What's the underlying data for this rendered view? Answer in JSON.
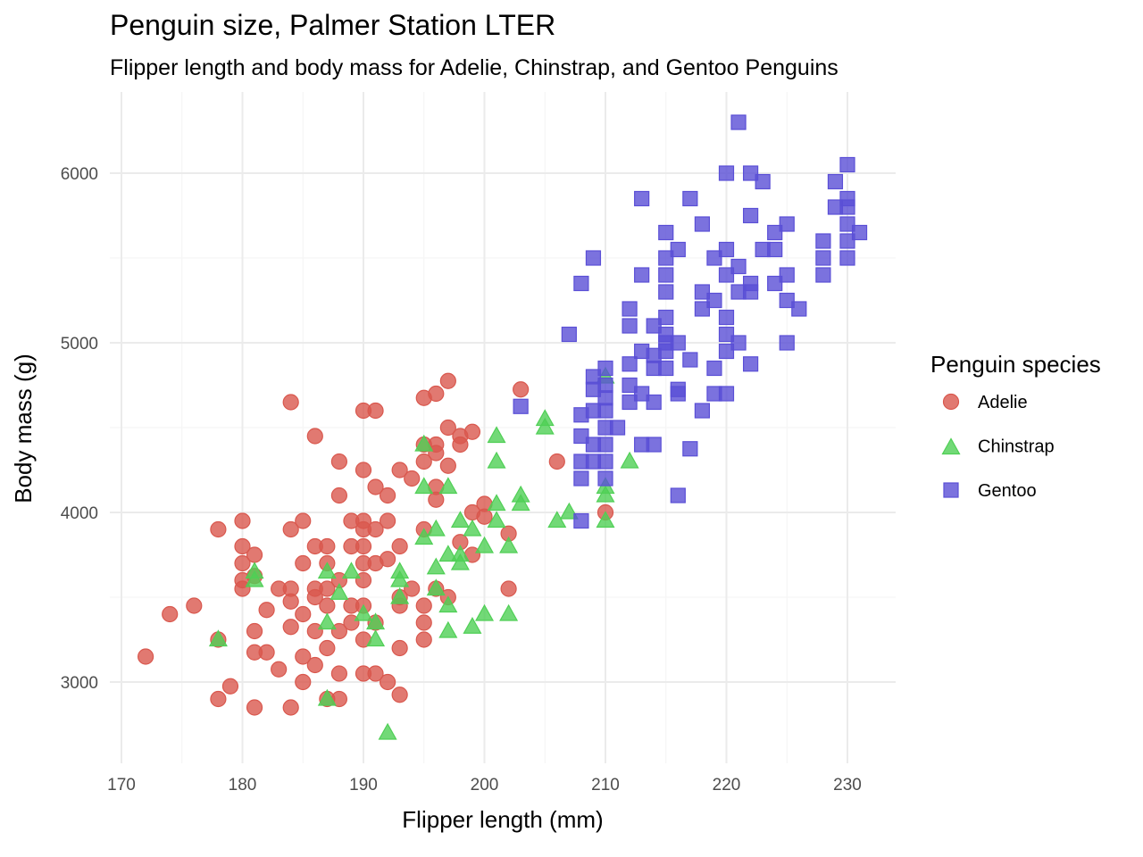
{
  "chart_data": {
    "type": "scatter",
    "title": "Penguin size, Palmer Station LTER",
    "subtitle": "Flipper length and body mass for Adelie, Chinstrap, and Gentoo Penguins",
    "xlabel": "Flipper length (mm)",
    "ylabel": "Body mass (g)",
    "xlim": [
      170,
      233
    ],
    "ylim": [
      2550,
      6450
    ],
    "xticks": [
      "170",
      "180",
      "190",
      "200",
      "210",
      "220",
      "230"
    ],
    "yticks": [
      "3000",
      "4000",
      "5000",
      "6000"
    ],
    "grid": true,
    "legend": {
      "title": "Penguin species",
      "placement": "right"
    },
    "series": [
      {
        "name": "Adelie",
        "color": "#d9574d",
        "shape": "circle",
        "points": [
          [
            172,
            3150
          ],
          [
            174,
            3400
          ],
          [
            176,
            3450
          ],
          [
            178,
            3900
          ],
          [
            178,
            3250
          ],
          [
            178,
            2900
          ],
          [
            179,
            2975
          ],
          [
            180,
            3950
          ],
          [
            180,
            3800
          ],
          [
            180,
            3700
          ],
          [
            180,
            3600
          ],
          [
            180,
            3550
          ],
          [
            181,
            3750
          ],
          [
            181,
            3625
          ],
          [
            181,
            3300
          ],
          [
            181,
            3175
          ],
          [
            181,
            2850
          ],
          [
            182,
            3425
          ],
          [
            182,
            3175
          ],
          [
            183,
            3550
          ],
          [
            183,
            3075
          ],
          [
            184,
            4650
          ],
          [
            184,
            3900
          ],
          [
            184,
            3550
          ],
          [
            184,
            3475
          ],
          [
            184,
            3325
          ],
          [
            184,
            2850
          ],
          [
            185,
            3950
          ],
          [
            185,
            3700
          ],
          [
            185,
            3400
          ],
          [
            185,
            3150
          ],
          [
            185,
            3000
          ],
          [
            186,
            4450
          ],
          [
            186,
            3800
          ],
          [
            186,
            3550
          ],
          [
            186,
            3500
          ],
          [
            186,
            3300
          ],
          [
            186,
            3100
          ],
          [
            187,
            3800
          ],
          [
            187,
            3700
          ],
          [
            187,
            3550
          ],
          [
            187,
            3450
          ],
          [
            187,
            3200
          ],
          [
            187,
            2900
          ],
          [
            188,
            4300
          ],
          [
            188,
            4100
          ],
          [
            188,
            3600
          ],
          [
            188,
            3300
          ],
          [
            188,
            3050
          ],
          [
            188,
            2900
          ],
          [
            189,
            3950
          ],
          [
            189,
            3800
          ],
          [
            189,
            3450
          ],
          [
            189,
            3350
          ],
          [
            190,
            4600
          ],
          [
            190,
            4250
          ],
          [
            190,
            3950
          ],
          [
            190,
            3900
          ],
          [
            190,
            3800
          ],
          [
            190,
            3700
          ],
          [
            190,
            3600
          ],
          [
            190,
            3450
          ],
          [
            190,
            3250
          ],
          [
            190,
            3050
          ],
          [
            191,
            4600
          ],
          [
            191,
            4150
          ],
          [
            191,
            3900
          ],
          [
            191,
            3700
          ],
          [
            191,
            3350
          ],
          [
            191,
            3050
          ],
          [
            192,
            4100
          ],
          [
            192,
            3950
          ],
          [
            192,
            3725
          ],
          [
            192,
            3000
          ],
          [
            193,
            4250
          ],
          [
            193,
            3800
          ],
          [
            193,
            3500
          ],
          [
            193,
            3450
          ],
          [
            193,
            3200
          ],
          [
            193,
            2925
          ],
          [
            194,
            4200
          ],
          [
            194,
            3550
          ],
          [
            195,
            4675
          ],
          [
            195,
            4400
          ],
          [
            195,
            4300
          ],
          [
            195,
            3900
          ],
          [
            195,
            3450
          ],
          [
            195,
            3350
          ],
          [
            195,
            3250
          ],
          [
            196,
            4700
          ],
          [
            196,
            4400
          ],
          [
            196,
            4350
          ],
          [
            196,
            4150
          ],
          [
            196,
            4075
          ],
          [
            196,
            3550
          ],
          [
            197,
            4775
          ],
          [
            197,
            4500
          ],
          [
            197,
            4275
          ],
          [
            197,
            3500
          ],
          [
            198,
            4450
          ],
          [
            198,
            4400
          ],
          [
            198,
            3825
          ],
          [
            199,
            4475
          ],
          [
            199,
            4000
          ],
          [
            199,
            3750
          ],
          [
            200,
            4050
          ],
          [
            200,
            3975
          ],
          [
            202,
            3875
          ],
          [
            202,
            3550
          ],
          [
            203,
            4725
          ],
          [
            206,
            4300
          ],
          [
            210,
            4000
          ]
        ]
      },
      {
        "name": "Chinstrap",
        "color": "#4fcf55",
        "shape": "triangle",
        "points": [
          [
            178,
            3250
          ],
          [
            181,
            3650
          ],
          [
            181,
            3600
          ],
          [
            187,
            3650
          ],
          [
            187,
            3350
          ],
          [
            187,
            2900
          ],
          [
            188,
            3525
          ],
          [
            189,
            3650
          ],
          [
            190,
            3400
          ],
          [
            191,
            3350
          ],
          [
            191,
            3250
          ],
          [
            192,
            2700
          ],
          [
            193,
            3650
          ],
          [
            193,
            3600
          ],
          [
            193,
            3500
          ],
          [
            195,
            4400
          ],
          [
            195,
            4150
          ],
          [
            195,
            3850
          ],
          [
            196,
            3900
          ],
          [
            196,
            3675
          ],
          [
            196,
            3550
          ],
          [
            197,
            4150
          ],
          [
            197,
            3750
          ],
          [
            197,
            3450
          ],
          [
            197,
            3300
          ],
          [
            198,
            3950
          ],
          [
            198,
            3750
          ],
          [
            198,
            3700
          ],
          [
            199,
            3900
          ],
          [
            199,
            3325
          ],
          [
            200,
            3800
          ],
          [
            200,
            3400
          ],
          [
            201,
            4450
          ],
          [
            201,
            4300
          ],
          [
            201,
            4050
          ],
          [
            201,
            3950
          ],
          [
            202,
            3800
          ],
          [
            202,
            3400
          ],
          [
            203,
            4100
          ],
          [
            203,
            4050
          ],
          [
            205,
            4550
          ],
          [
            205,
            4500
          ],
          [
            206,
            3950
          ],
          [
            207,
            4000
          ],
          [
            210,
            4800
          ],
          [
            210,
            4150
          ],
          [
            210,
            4100
          ],
          [
            210,
            3950
          ],
          [
            212,
            4300
          ]
        ]
      },
      {
        "name": "Gentoo",
        "color": "#5a4fd6",
        "shape": "square",
        "points": [
          [
            203,
            4625
          ],
          [
            207,
            5050
          ],
          [
            208,
            4575
          ],
          [
            208,
            4450
          ],
          [
            208,
            4300
          ],
          [
            208,
            4200
          ],
          [
            208,
            3950
          ],
          [
            208,
            5350
          ],
          [
            209,
            5500
          ],
          [
            209,
            4800
          ],
          [
            209,
            4725
          ],
          [
            209,
            4600
          ],
          [
            209,
            4400
          ],
          [
            209,
            4300
          ],
          [
            210,
            4850
          ],
          [
            210,
            4750
          ],
          [
            210,
            4675
          ],
          [
            210,
            4600
          ],
          [
            210,
            4500
          ],
          [
            210,
            4400
          ],
          [
            210,
            4300
          ],
          [
            210,
            4200
          ],
          [
            211,
            4500
          ],
          [
            212,
            5200
          ],
          [
            212,
            5100
          ],
          [
            212,
            4875
          ],
          [
            212,
            4750
          ],
          [
            212,
            4650
          ],
          [
            213,
            5850
          ],
          [
            213,
            5400
          ],
          [
            213,
            4950
          ],
          [
            213,
            4400
          ],
          [
            213,
            4700
          ],
          [
            214,
            5100
          ],
          [
            214,
            4925
          ],
          [
            214,
            4850
          ],
          [
            214,
            4650
          ],
          [
            214,
            4400
          ],
          [
            215,
            5650
          ],
          [
            215,
            5500
          ],
          [
            215,
            5400
          ],
          [
            215,
            5300
          ],
          [
            215,
            5150
          ],
          [
            215,
            5050
          ],
          [
            215,
            5000
          ],
          [
            215,
            4950
          ],
          [
            215,
            4850
          ],
          [
            216,
            5550
          ],
          [
            216,
            5000
          ],
          [
            216,
            4725
          ],
          [
            216,
            4700
          ],
          [
            216,
            4100
          ],
          [
            217,
            5850
          ],
          [
            217,
            4900
          ],
          [
            217,
            4375
          ],
          [
            218,
            5700
          ],
          [
            218,
            5300
          ],
          [
            218,
            5200
          ],
          [
            218,
            4600
          ],
          [
            219,
            5500
          ],
          [
            219,
            5250
          ],
          [
            219,
            4850
          ],
          [
            219,
            4700
          ],
          [
            220,
            6000
          ],
          [
            220,
            5550
          ],
          [
            220,
            5400
          ],
          [
            220,
            5150
          ],
          [
            220,
            5050
          ],
          [
            220,
            4950
          ],
          [
            220,
            4700
          ],
          [
            221,
            6300
          ],
          [
            221,
            5450
          ],
          [
            221,
            5300
          ],
          [
            221,
            5000
          ],
          [
            222,
            6000
          ],
          [
            222,
            5750
          ],
          [
            222,
            5350
          ],
          [
            222,
            5300
          ],
          [
            222,
            4875
          ],
          [
            223,
            5950
          ],
          [
            223,
            5550
          ],
          [
            224,
            5650
          ],
          [
            224,
            5550
          ],
          [
            224,
            5350
          ],
          [
            225,
            5700
          ],
          [
            225,
            5400
          ],
          [
            225,
            5250
          ],
          [
            225,
            5000
          ],
          [
            226,
            5200
          ],
          [
            228,
            5600
          ],
          [
            228,
            5500
          ],
          [
            228,
            5400
          ],
          [
            229,
            5950
          ],
          [
            229,
            5800
          ],
          [
            230,
            6050
          ],
          [
            230,
            5850
          ],
          [
            230,
            5800
          ],
          [
            230,
            5700
          ],
          [
            230,
            5600
          ],
          [
            230,
            5500
          ],
          [
            231,
            5650
          ]
        ]
      }
    ]
  }
}
